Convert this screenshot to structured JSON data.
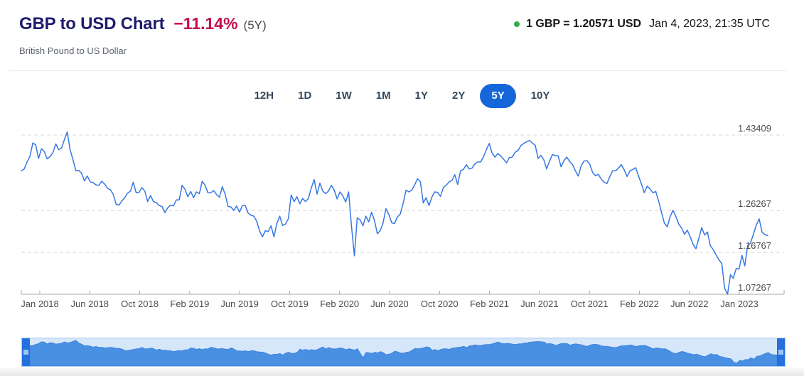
{
  "header": {
    "title": "GBP to USD Chart",
    "change_percent": "−11.14%",
    "change_period": "(5Y)",
    "subtitle": "British Pound to US Dollar",
    "live_rate_label": "1 GBP = 1.20571 USD",
    "timestamp": "Jan 4, 2023, 21:35 UTC"
  },
  "tabs": {
    "items": [
      "12H",
      "1D",
      "1W",
      "1M",
      "1Y",
      "2Y",
      "5Y",
      "10Y"
    ],
    "selected": "5Y"
  },
  "colors": {
    "title": "#211b6d",
    "change_negative": "#c40b4e",
    "accent_blue": "#1566d8",
    "line_blue": "#3577e3",
    "gridline": "#d8d8d8",
    "axis": "#a8a8a8",
    "navigator_fill": "#4a90e2",
    "navigator_edge": "#3c82df",
    "navigator_bg": "#d7e7fa",
    "navigator_handle": "#2470dd",
    "live_dot_green": "#2fae4d"
  },
  "chart_data": {
    "type": "line",
    "title": "GBP to USD exchange rate, 5 years",
    "legend": "none",
    "grid": "horizontal-dashed",
    "x_tick_labels": [
      "Jan 2018",
      "Jun 2018",
      "Oct 2018",
      "Feb 2019",
      "Jun 2019",
      "Oct 2019",
      "Feb 2020",
      "Jun 2020",
      "Oct 2020",
      "Feb 2021",
      "Jun 2021",
      "Oct 2021",
      "Feb 2022",
      "Jun 2022",
      "Jan 2023"
    ],
    "y_tick_labels": [
      "1.43409",
      "1.26267",
      "1.16767",
      "1.07267"
    ],
    "y_tick_values": [
      1.43409,
      1.26267,
      1.16767,
      1.07267
    ],
    "ylim": [
      1.05,
      1.46
    ],
    "last_point": {
      "value": 1.20571,
      "date": "Jan 4, 2023, 21:35 UTC"
    },
    "series": [
      {
        "name": "GBP/USD",
        "interval": "weekly",
        "x_start": "Jan 2018",
        "x_end": "Jan 2023",
        "values": [
          1.353,
          1.357,
          1.373,
          1.386,
          1.416,
          1.412,
          1.381,
          1.403,
          1.397,
          1.38,
          1.385,
          1.394,
          1.414,
          1.401,
          1.404,
          1.424,
          1.441,
          1.4,
          1.378,
          1.353,
          1.354,
          1.347,
          1.33,
          1.341,
          1.328,
          1.326,
          1.321,
          1.32,
          1.329,
          1.323,
          1.313,
          1.31,
          1.3,
          1.277,
          1.275,
          1.284,
          1.292,
          1.302,
          1.307,
          1.327,
          1.303,
          1.304,
          1.315,
          1.307,
          1.283,
          1.297,
          1.283,
          1.281,
          1.274,
          1.272,
          1.258,
          1.269,
          1.275,
          1.273,
          1.287,
          1.287,
          1.32,
          1.311,
          1.294,
          1.306,
          1.292,
          1.305,
          1.301,
          1.329,
          1.32,
          1.303,
          1.303,
          1.308,
          1.299,
          1.293,
          1.317,
          1.3,
          1.272,
          1.271,
          1.263,
          1.273,
          1.259,
          1.274,
          1.274,
          1.257,
          1.252,
          1.25,
          1.238,
          1.216,
          1.203,
          1.217,
          1.215,
          1.228,
          1.203,
          1.233,
          1.25,
          1.229,
          1.232,
          1.244,
          1.298,
          1.283,
          1.294,
          1.278,
          1.29,
          1.283,
          1.29,
          1.314,
          1.333,
          1.3,
          1.325,
          1.307,
          1.301,
          1.307,
          1.32,
          1.309,
          1.289,
          1.305,
          1.296,
          1.282,
          1.305,
          1.228,
          1.16,
          1.246,
          1.242,
          1.228,
          1.25,
          1.237,
          1.259,
          1.241,
          1.21,
          1.217,
          1.234,
          1.267,
          1.254,
          1.235,
          1.233,
          1.248,
          1.255,
          1.279,
          1.309,
          1.305,
          1.309,
          1.321,
          1.335,
          1.328,
          1.28,
          1.292,
          1.274,
          1.293,
          1.305,
          1.304,
          1.295,
          1.315,
          1.32,
          1.328,
          1.331,
          1.344,
          1.322,
          1.353,
          1.356,
          1.367,
          1.357,
          1.359,
          1.369,
          1.373,
          1.373,
          1.385,
          1.401,
          1.415,
          1.393,
          1.384,
          1.392,
          1.387,
          1.379,
          1.371,
          1.383,
          1.384,
          1.395,
          1.399,
          1.41,
          1.415,
          1.419,
          1.422,
          1.416,
          1.411,
          1.381,
          1.388,
          1.378,
          1.357,
          1.375,
          1.39,
          1.387,
          1.387,
          1.362,
          1.376,
          1.384,
          1.374,
          1.367,
          1.353,
          1.341,
          1.364,
          1.375,
          1.376,
          1.368,
          1.349,
          1.342,
          1.345,
          1.334,
          1.327,
          1.324,
          1.34,
          1.353,
          1.353,
          1.359,
          1.367,
          1.355,
          1.34,
          1.353,
          1.356,
          1.36,
          1.341,
          1.323,
          1.303,
          1.318,
          1.312,
          1.303,
          1.306,
          1.284,
          1.258,
          1.234,
          1.226,
          1.249,
          1.263,
          1.249,
          1.232,
          1.223,
          1.209,
          1.218,
          1.203,
          1.186,
          1.176,
          1.2,
          1.224,
          1.207,
          1.214,
          1.183,
          1.174,
          1.162,
          1.151,
          1.142,
          1.086,
          1.073,
          1.117,
          1.109,
          1.131,
          1.13,
          1.161,
          1.137,
          1.183,
          1.189,
          1.209,
          1.229,
          1.244,
          1.214,
          1.208,
          1.20571
        ]
      }
    ]
  },
  "navigator": {
    "type": "area",
    "range_selected": "full",
    "source": "chart_data.series[0].values"
  }
}
